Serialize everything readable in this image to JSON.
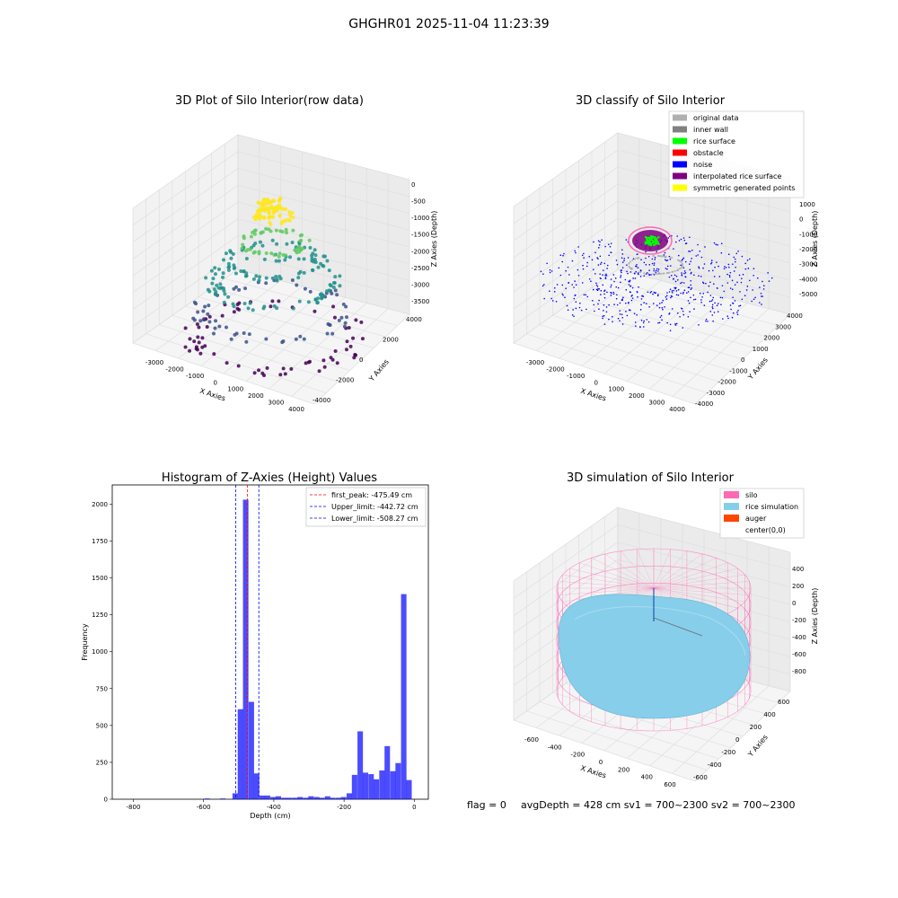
{
  "suptitle": "GHGHR01 2025-11-04 11:23:39",
  "panel_raw": {
    "title": "3D Plot of Silo Interior(row data)",
    "xlabel": "X Axies",
    "ylabel": "Y Axies",
    "zlabel": "Z Axies (Depth)",
    "x_ticks": [
      "-3000",
      "-2000",
      "-1000",
      "0",
      "1000",
      "2000",
      "3000",
      "4000"
    ],
    "y_ticks": [
      "-4000",
      "-2000",
      "0",
      "2000",
      "4000"
    ],
    "z_ticks": [
      "0",
      "-500",
      "-1000",
      "-1500",
      "-2000",
      "-2500",
      "-3000",
      "-3500"
    ],
    "colormap": [
      "#440154",
      "#3b528b",
      "#21918c",
      "#5ec962",
      "#fde725"
    ]
  },
  "panel_classify": {
    "title": "3D classify of Silo Interior",
    "xlabel": "X Axies",
    "ylabel": "Y Axies",
    "zlabel": "Z Axies (Depth)",
    "x_ticks": [
      "-3000",
      "-2000",
      "-1000",
      "0",
      "1000",
      "2000",
      "3000",
      "4000"
    ],
    "y_ticks": [
      "-4000",
      "-3000",
      "-2000",
      "-1000",
      "0",
      "1000",
      "2000",
      "3000",
      "4000"
    ],
    "z_ticks": [
      "1000",
      "0",
      "-1000",
      "-2000",
      "-3000",
      "-4000",
      "-5000"
    ],
    "legend": [
      {
        "label": "original data",
        "color": "#b0b0b0"
      },
      {
        "label": "inner wall",
        "color": "#808080"
      },
      {
        "label": "rice surface",
        "color": "#00ff00"
      },
      {
        "label": "obstacle",
        "color": "#ff0000"
      },
      {
        "label": "noise",
        "color": "#0000ff"
      },
      {
        "label": "interpolated rice surface",
        "color": "#800080"
      },
      {
        "label": "symmetric generated points",
        "color": "#ffff00"
      }
    ]
  },
  "panel_sim": {
    "title": "3D simulation of Silo Interior",
    "xlabel": "X Axies",
    "ylabel": "Y Axies",
    "zlabel": "Z Axies (Depth)",
    "x_ticks": [
      "-600",
      "-400",
      "-200",
      "0",
      "200",
      "400",
      "600"
    ],
    "y_ticks": [
      "-600",
      "-400",
      "-200",
      "0",
      "200",
      "400",
      "600"
    ],
    "z_ticks": [
      "400",
      "200",
      "0",
      "-200",
      "-400",
      "-600",
      "-800"
    ],
    "legend": [
      {
        "label": "silo",
        "color": "#ff69b4"
      },
      {
        "label": "rice simulation",
        "color": "#87ceeb"
      },
      {
        "label": "auger",
        "color": "#ff4500"
      },
      {
        "label": "center(0,0)",
        "color": ""
      }
    ]
  },
  "chart_data": [
    {
      "type": "bar",
      "title": "Histogram of Z-Axies (Height) Values",
      "xlabel": "Depth (cm)",
      "ylabel": "Frequency",
      "xlim": [
        -860,
        40
      ],
      "ylim": [
        0,
        2130
      ],
      "x_ticks": [
        -800,
        -600,
        -400,
        -200,
        0
      ],
      "y_ticks": [
        0,
        250,
        500,
        750,
        1000,
        1250,
        1500,
        1750,
        2000
      ],
      "bin_width": 15.5,
      "bins": [
        {
          "x": -590,
          "value": 5
        },
        {
          "x": -545,
          "value": 5
        },
        {
          "x": -510,
          "value": 40
        },
        {
          "x": -495,
          "value": 610
        },
        {
          "x": -480,
          "value": 2030
        },
        {
          "x": -464,
          "value": 660
        },
        {
          "x": -449,
          "value": 175
        },
        {
          "x": -433,
          "value": 25
        },
        {
          "x": -418,
          "value": 25
        },
        {
          "x": -402,
          "value": 15
        },
        {
          "x": -387,
          "value": 20
        },
        {
          "x": -371,
          "value": 10
        },
        {
          "x": -356,
          "value": 10
        },
        {
          "x": -340,
          "value": 10
        },
        {
          "x": -325,
          "value": 15
        },
        {
          "x": -309,
          "value": 10
        },
        {
          "x": -294,
          "value": 20
        },
        {
          "x": -278,
          "value": 15
        },
        {
          "x": -263,
          "value": 10
        },
        {
          "x": -247,
          "value": 20
        },
        {
          "x": -232,
          "value": 10
        },
        {
          "x": -216,
          "value": 10
        },
        {
          "x": -201,
          "value": 15
        },
        {
          "x": -185,
          "value": 40
        },
        {
          "x": -170,
          "value": 165
        },
        {
          "x": -154,
          "value": 460
        },
        {
          "x": -139,
          "value": 180
        },
        {
          "x": -123,
          "value": 170
        },
        {
          "x": -108,
          "value": 135
        },
        {
          "x": -92,
          "value": 195
        },
        {
          "x": -77,
          "value": 360
        },
        {
          "x": -61,
          "value": 190
        },
        {
          "x": -46,
          "value": 245
        },
        {
          "x": -30,
          "value": 1390
        },
        {
          "x": -15,
          "value": 130
        }
      ],
      "bar_color": "#0000ff",
      "lines": [
        {
          "label": "first_peak: -475.49 cm",
          "x": -475.49,
          "color": "#ff0000"
        },
        {
          "label": "Upper_limit: -442.72 cm",
          "x": -442.72,
          "color": "#0000ff"
        },
        {
          "label": "Lower_limit: -508.27 cm",
          "x": -508.27,
          "color": "#0000ff"
        }
      ],
      "legend_position": "top-right"
    }
  ],
  "footer": {
    "flag": "flag = 0",
    "stats": "avgDepth = 428 cm  sv1 = 700~2300  sv2 = 700~2300"
  }
}
